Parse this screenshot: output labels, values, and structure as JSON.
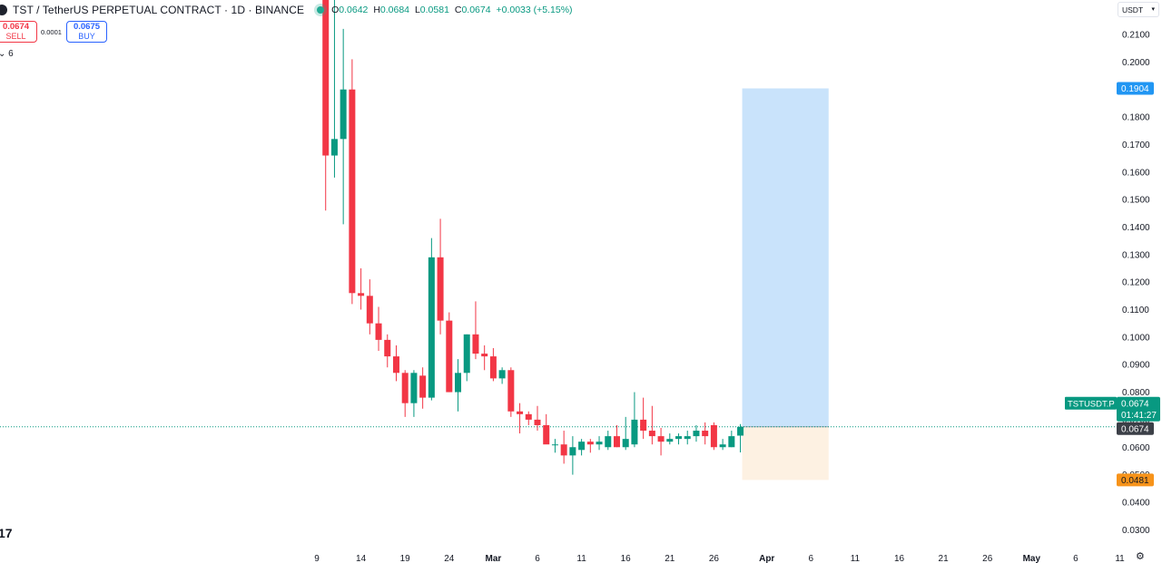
{
  "header": {
    "symbol_title": "TST / TetherUS PERPETUAL CONTRACT · 1D · BINANCE",
    "o_label": "O",
    "o_value": "0.0642",
    "h_label": "H",
    "h_value": "0.0684",
    "l_label": "L",
    "l_value": "0.0581",
    "c_label": "C",
    "c_value": "0.0674",
    "change": "+0.0033 (+5.15%)"
  },
  "trade": {
    "sell_price": "0.0674",
    "sell_label": "SELL",
    "spread": "0.0001",
    "buy_price": "0.0675",
    "buy_label": "BUY"
  },
  "indicators_toggle": "6",
  "currency_button": "USDT",
  "logo_text": "17",
  "colors": {
    "up": "#089981",
    "down": "#f23645",
    "profit_zone": "#c9e3fb",
    "loss_zone": "#fdf1e2",
    "target_tag": "#2196f3",
    "stop_tag": "#f7931a",
    "price_line": "#089981"
  },
  "chart_data": {
    "type": "candlestick",
    "title": "TST / TetherUS PERPETUAL CONTRACT · 1D · BINANCE",
    "ylim": [
      0.028,
      0.216
    ],
    "y_ticks": [
      0.21,
      0.2,
      0.19,
      0.18,
      0.17,
      0.16,
      0.15,
      0.14,
      0.13,
      0.12,
      0.11,
      0.1,
      0.09,
      0.08,
      0.07,
      0.06,
      0.05,
      0.04,
      0.03
    ],
    "y_tick_labels": [
      "0.2100",
      "0.2000",
      "0.1900",
      "0.1800",
      "0.1700",
      "0.1600",
      "0.1500",
      "0.1400",
      "0.1300",
      "0.1200",
      "0.1100",
      "0.1000",
      "0.0900",
      "0.0800",
      "0.0700",
      "0.0600",
      "0.0500",
      "0.0400",
      "0.0300"
    ],
    "x_ticks": [
      {
        "label": "9",
        "day": 0
      },
      {
        "label": "14",
        "day": 5
      },
      {
        "label": "19",
        "day": 10
      },
      {
        "label": "24",
        "day": 15
      },
      {
        "label": "Mar",
        "day": 20
      },
      {
        "label": "6",
        "day": 25
      },
      {
        "label": "11",
        "day": 30
      },
      {
        "label": "16",
        "day": 35
      },
      {
        "label": "21",
        "day": 40
      },
      {
        "label": "26",
        "day": 45
      },
      {
        "label": "Apr",
        "day": 51
      },
      {
        "label": "6",
        "day": 56
      },
      {
        "label": "11",
        "day": 61
      },
      {
        "label": "16",
        "day": 66
      },
      {
        "label": "21",
        "day": 71
      },
      {
        "label": "26",
        "day": 76
      },
      {
        "label": "May",
        "day": 81
      },
      {
        "label": "6",
        "day": 86
      },
      {
        "label": "11",
        "day": 91
      }
    ],
    "x_day_range": [
      -1,
      97
    ],
    "candles": [
      {
        "d": 1,
        "o": 0.23,
        "h": 0.23,
        "l": 0.146,
        "c": 0.166
      },
      {
        "d": 2,
        "o": 0.166,
        "h": 0.23,
        "l": 0.158,
        "c": 0.172
      },
      {
        "d": 3,
        "o": 0.172,
        "h": 0.212,
        "l": 0.141,
        "c": 0.19
      },
      {
        "d": 4,
        "o": 0.19,
        "h": 0.201,
        "l": 0.112,
        "c": 0.116
      },
      {
        "d": 5,
        "o": 0.116,
        "h": 0.125,
        "l": 0.11,
        "c": 0.115
      },
      {
        "d": 6,
        "o": 0.115,
        "h": 0.121,
        "l": 0.101,
        "c": 0.105
      },
      {
        "d": 7,
        "o": 0.105,
        "h": 0.111,
        "l": 0.095,
        "c": 0.099
      },
      {
        "d": 8,
        "o": 0.099,
        "h": 0.101,
        "l": 0.089,
        "c": 0.093
      },
      {
        "d": 9,
        "o": 0.093,
        "h": 0.097,
        "l": 0.084,
        "c": 0.087
      },
      {
        "d": 10,
        "o": 0.087,
        "h": 0.088,
        "l": 0.071,
        "c": 0.076
      },
      {
        "d": 11,
        "o": 0.076,
        "h": 0.088,
        "l": 0.071,
        "c": 0.087
      },
      {
        "d": 12,
        "o": 0.086,
        "h": 0.089,
        "l": 0.074,
        "c": 0.078
      },
      {
        "d": 13,
        "o": 0.078,
        "h": 0.136,
        "l": 0.077,
        "c": 0.129
      },
      {
        "d": 14,
        "o": 0.129,
        "h": 0.143,
        "l": 0.101,
        "c": 0.106
      },
      {
        "d": 15,
        "o": 0.106,
        "h": 0.109,
        "l": 0.08,
        "c": 0.08
      },
      {
        "d": 16,
        "o": 0.08,
        "h": 0.092,
        "l": 0.073,
        "c": 0.087
      },
      {
        "d": 17,
        "o": 0.087,
        "h": 0.101,
        "l": 0.084,
        "c": 0.101
      },
      {
        "d": 18,
        "o": 0.101,
        "h": 0.113,
        "l": 0.092,
        "c": 0.094
      },
      {
        "d": 19,
        "o": 0.094,
        "h": 0.097,
        "l": 0.088,
        "c": 0.093
      },
      {
        "d": 20,
        "o": 0.093,
        "h": 0.096,
        "l": 0.084,
        "c": 0.085
      },
      {
        "d": 21,
        "o": 0.085,
        "h": 0.089,
        "l": 0.083,
        "c": 0.088
      },
      {
        "d": 22,
        "o": 0.088,
        "h": 0.089,
        "l": 0.071,
        "c": 0.073
      },
      {
        "d": 23,
        "o": 0.073,
        "h": 0.076,
        "l": 0.065,
        "c": 0.072
      },
      {
        "d": 24,
        "o": 0.072,
        "h": 0.073,
        "l": 0.068,
        "c": 0.07
      },
      {
        "d": 25,
        "o": 0.07,
        "h": 0.075,
        "l": 0.066,
        "c": 0.068
      },
      {
        "d": 26,
        "o": 0.068,
        "h": 0.072,
        "l": 0.062,
        "c": 0.061
      },
      {
        "d": 27,
        "o": 0.061,
        "h": 0.063,
        "l": 0.058,
        "c": 0.061
      },
      {
        "d": 28,
        "o": 0.061,
        "h": 0.066,
        "l": 0.054,
        "c": 0.057
      },
      {
        "d": 29,
        "o": 0.057,
        "h": 0.064,
        "l": 0.05,
        "c": 0.06
      },
      {
        "d": 30,
        "o": 0.059,
        "h": 0.063,
        "l": 0.057,
        "c": 0.062
      },
      {
        "d": 31,
        "o": 0.062,
        "h": 0.063,
        "l": 0.058,
        "c": 0.061
      },
      {
        "d": 32,
        "o": 0.061,
        "h": 0.064,
        "l": 0.059,
        "c": 0.062
      },
      {
        "d": 33,
        "o": 0.06,
        "h": 0.066,
        "l": 0.059,
        "c": 0.064
      },
      {
        "d": 34,
        "o": 0.064,
        "h": 0.068,
        "l": 0.06,
        "c": 0.06
      },
      {
        "d": 35,
        "o": 0.06,
        "h": 0.071,
        "l": 0.059,
        "c": 0.063
      },
      {
        "d": 36,
        "o": 0.061,
        "h": 0.08,
        "l": 0.06,
        "c": 0.07
      },
      {
        "d": 37,
        "o": 0.07,
        "h": 0.078,
        "l": 0.063,
        "c": 0.066
      },
      {
        "d": 38,
        "o": 0.066,
        "h": 0.075,
        "l": 0.061,
        "c": 0.064
      },
      {
        "d": 39,
        "o": 0.064,
        "h": 0.067,
        "l": 0.057,
        "c": 0.062
      },
      {
        "d": 40,
        "o": 0.062,
        "h": 0.065,
        "l": 0.061,
        "c": 0.063
      },
      {
        "d": 41,
        "o": 0.063,
        "h": 0.065,
        "l": 0.061,
        "c": 0.064
      },
      {
        "d": 42,
        "o": 0.063,
        "h": 0.066,
        "l": 0.061,
        "c": 0.064
      },
      {
        "d": 43,
        "o": 0.064,
        "h": 0.068,
        "l": 0.062,
        "c": 0.066
      },
      {
        "d": 44,
        "o": 0.066,
        "h": 0.069,
        "l": 0.061,
        "c": 0.064
      },
      {
        "d": 45,
        "o": 0.068,
        "h": 0.069,
        "l": 0.059,
        "c": 0.06
      },
      {
        "d": 46,
        "o": 0.06,
        "h": 0.063,
        "l": 0.059,
        "c": 0.061
      },
      {
        "d": 47,
        "o": 0.06,
        "h": 0.066,
        "l": 0.06,
        "c": 0.064
      },
      {
        "d": 48,
        "o": 0.0642,
        "h": 0.0684,
        "l": 0.0581,
        "c": 0.0674
      }
    ],
    "position": {
      "type": "long",
      "entry": 0.0674,
      "target": 0.1904,
      "stop": 0.0481,
      "start_day": 48,
      "end_day": 58
    },
    "last_price_tag": {
      "symbol": "TSTUSDT.P",
      "price": "0.0674",
      "countdown": "01:41:27"
    },
    "entry_tag": "0.0674",
    "target_tag": "0.1904",
    "stop_tag": "0.0481",
    "grid": false
  }
}
